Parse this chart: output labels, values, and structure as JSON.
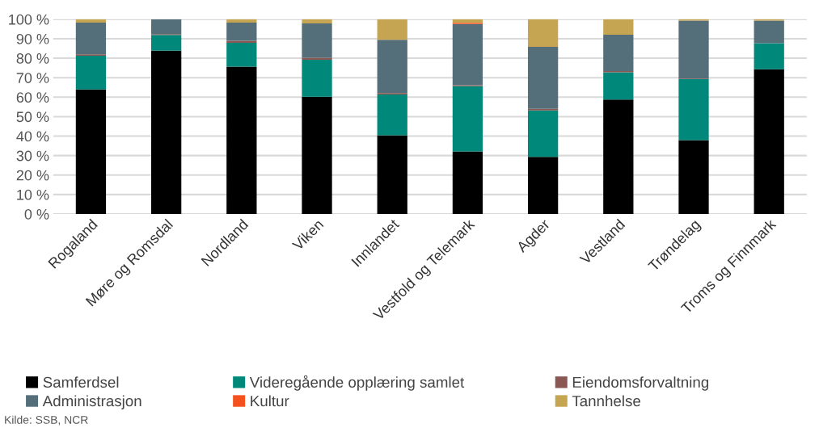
{
  "chart_data": {
    "type": "bar",
    "stacked": true,
    "categories": [
      "Rogaland",
      "Møre og Romsdal",
      "Nordland",
      "Viken",
      "Innlandet",
      "Vestfold og Telemark",
      "Agder",
      "Vestland",
      "Trøndelag",
      "Troms og Finnmark"
    ],
    "series": [
      {
        "name": "Samferdsel",
        "color": "#000000",
        "values": [
          64.0,
          83.9,
          75.7,
          60.2,
          40.4,
          32.1,
          29.3,
          58.8,
          37.9,
          74.3
        ]
      },
      {
        "name": "Videregående opplæring samlet",
        "color": "#00897b",
        "values": [
          17.3,
          8.1,
          12.2,
          19.0,
          21.0,
          33.5,
          23.9,
          14.0,
          31.4,
          13.4
        ]
      },
      {
        "name": "Eiendomsforvaltning",
        "color": "#8b5752",
        "values": [
          0.7,
          0.4,
          1.0,
          1.0,
          0.7,
          0.5,
          0.8,
          0.6,
          0.3,
          0
        ]
      },
      {
        "name": "Administrasjon",
        "color": "#546e7a",
        "values": [
          16.3,
          7.6,
          9.4,
          17.7,
          27.4,
          31.5,
          31.8,
          18.7,
          29.7,
          11.6
        ]
      },
      {
        "name": "Kultur",
        "color": "#f4511e",
        "values": [
          0,
          0,
          0,
          0,
          0,
          0.6,
          0,
          0,
          0,
          0
        ]
      },
      {
        "name": "Tannhelse",
        "color": "#c6a552",
        "values": [
          1.7,
          null,
          1.7,
          2.1,
          10.5,
          1.8,
          14.2,
          7.9,
          0.7,
          0.7
        ]
      }
    ],
    "ylim": [
      0,
      100
    ],
    "yticks": [
      {
        "value": 0,
        "label": "0 %"
      },
      {
        "value": 10,
        "label": "10 %"
      },
      {
        "value": 20,
        "label": "20 %"
      },
      {
        "value": 30,
        "label": "30 %"
      },
      {
        "value": 40,
        "label": "40 %"
      },
      {
        "value": 50,
        "label": "50 %"
      },
      {
        "value": 60,
        "label": "60 %"
      },
      {
        "value": 70,
        "label": "70 %"
      },
      {
        "value": 80,
        "label": "80 %"
      },
      {
        "value": 90,
        "label": "90 %"
      },
      {
        "value": 100,
        "label": "100 %"
      }
    ],
    "grid": "y",
    "legend": "bottom",
    "annotations": [
      "Kilde: SSB, NCR"
    ]
  }
}
